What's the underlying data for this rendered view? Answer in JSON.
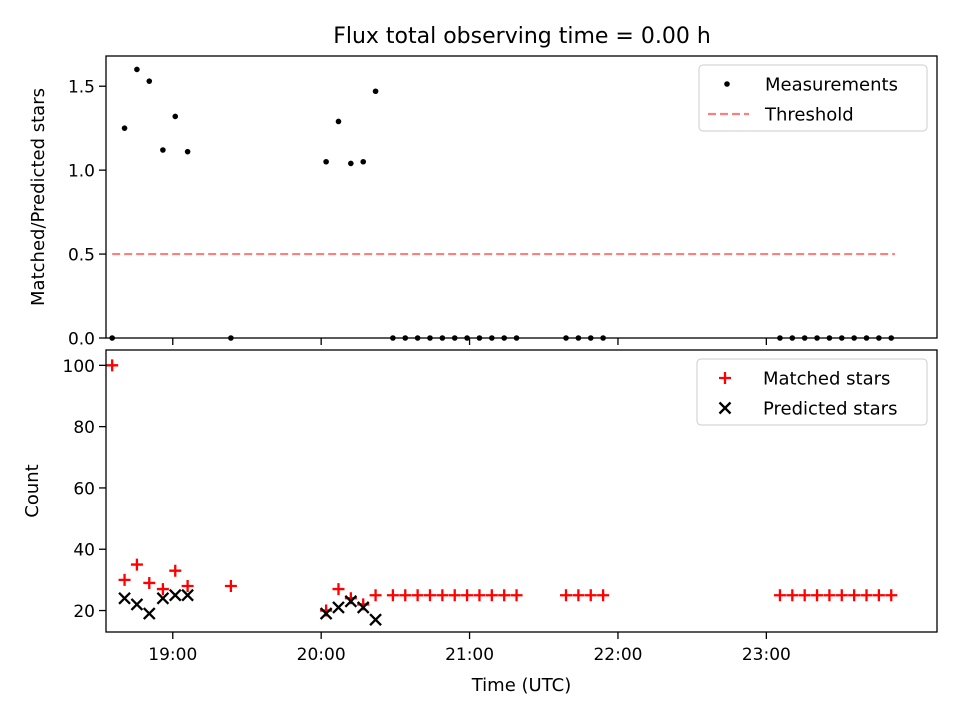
{
  "title": "Flux total observing time = 0.00 h",
  "chart_data": [
    {
      "type": "scatter",
      "ylabel": "Matched/Predicted stars",
      "ylim": [
        0,
        1.68
      ],
      "xlim": [
        1113,
        1449
      ],
      "grid": false,
      "legend_position": "top-right",
      "yticks": [
        {
          "v": 0,
          "label": "0.0"
        },
        {
          "v": 0.5,
          "label": "0.5"
        },
        {
          "v": 1.0,
          "label": "1.0"
        },
        {
          "v": 1.5,
          "label": "1.5"
        }
      ],
      "series": [
        {
          "name": "Measurements",
          "kind": "points",
          "color": "#000000",
          "x": [
            1115.5,
            1120.5,
            1125.5,
            1130.5,
            1136,
            1141,
            1146,
            1163.5,
            1202,
            1207,
            1212,
            1217,
            1222,
            1229,
            1234,
            1239,
            1244,
            1249,
            1254,
            1259,
            1264,
            1269,
            1274,
            1279,
            1299,
            1304,
            1309,
            1314,
            1385.5,
            1390.5,
            1395.5,
            1400.5,
            1405.5,
            1410.5,
            1415.5,
            1420.5,
            1425.5,
            1430.5
          ],
          "y": [
            0,
            1.25,
            1.6,
            1.53,
            1.12,
            1.32,
            1.11,
            0,
            1.05,
            1.29,
            1.04,
            1.05,
            1.47,
            0,
            0,
            0,
            0,
            0,
            0,
            0,
            0,
            0,
            0,
            0,
            0,
            0,
            0,
            0,
            0,
            0,
            0,
            0,
            0,
            0,
            0,
            0,
            0,
            0
          ]
        },
        {
          "name": "Threshold",
          "kind": "dashed-line",
          "color": "#ff7f7f",
          "x": [
            1115.5,
            1432
          ],
          "y": [
            0.5,
            0.5
          ]
        }
      ]
    },
    {
      "type": "scatter",
      "ylabel": "Count",
      "xlabel": "Time (UTC)",
      "ylim": [
        13,
        105
      ],
      "xlim": [
        1113,
        1449
      ],
      "grid": false,
      "legend_position": "top-right",
      "yticks": [
        {
          "v": 20,
          "label": "20"
        },
        {
          "v": 40,
          "label": "40"
        },
        {
          "v": 60,
          "label": "60"
        },
        {
          "v": 80,
          "label": "80"
        },
        {
          "v": 100,
          "label": "100"
        }
      ],
      "xticks": [
        {
          "v": 1140,
          "label": "19:00"
        },
        {
          "v": 1200,
          "label": "20:00"
        },
        {
          "v": 1260,
          "label": "21:00"
        },
        {
          "v": 1320,
          "label": "22:00"
        },
        {
          "v": 1380,
          "label": "23:00"
        }
      ],
      "series": [
        {
          "name": "Matched stars",
          "kind": "plus",
          "color": "#ff0000",
          "x": [
            1115.5,
            1120.5,
            1125.5,
            1130.5,
            1136,
            1141,
            1146,
            1163.5,
            1202,
            1207,
            1212,
            1217,
            1222,
            1229,
            1234,
            1239,
            1244,
            1249,
            1254,
            1259,
            1264,
            1269,
            1274,
            1279,
            1299,
            1304,
            1309,
            1314,
            1385.5,
            1390.5,
            1395.5,
            1400.5,
            1405.5,
            1410.5,
            1415.5,
            1420.5,
            1425.5,
            1430.5
          ],
          "y": [
            100,
            30,
            35,
            29,
            27,
            33,
            28,
            28,
            20,
            27,
            24,
            22,
            25,
            25,
            25,
            25,
            25,
            25,
            25,
            25,
            25,
            25,
            25,
            25,
            25,
            25,
            25,
            25,
            25,
            25,
            25,
            25,
            25,
            25,
            25,
            25,
            25,
            25
          ]
        },
        {
          "name": "Predicted stars",
          "kind": "cross",
          "color": "#000000",
          "x": [
            1120.5,
            1125.5,
            1130.5,
            1136,
            1141,
            1146,
            1202,
            1207,
            1212,
            1217,
            1222
          ],
          "y": [
            24,
            22,
            19,
            24,
            25,
            25,
            19,
            21,
            23,
            21,
            17
          ]
        }
      ]
    }
  ]
}
